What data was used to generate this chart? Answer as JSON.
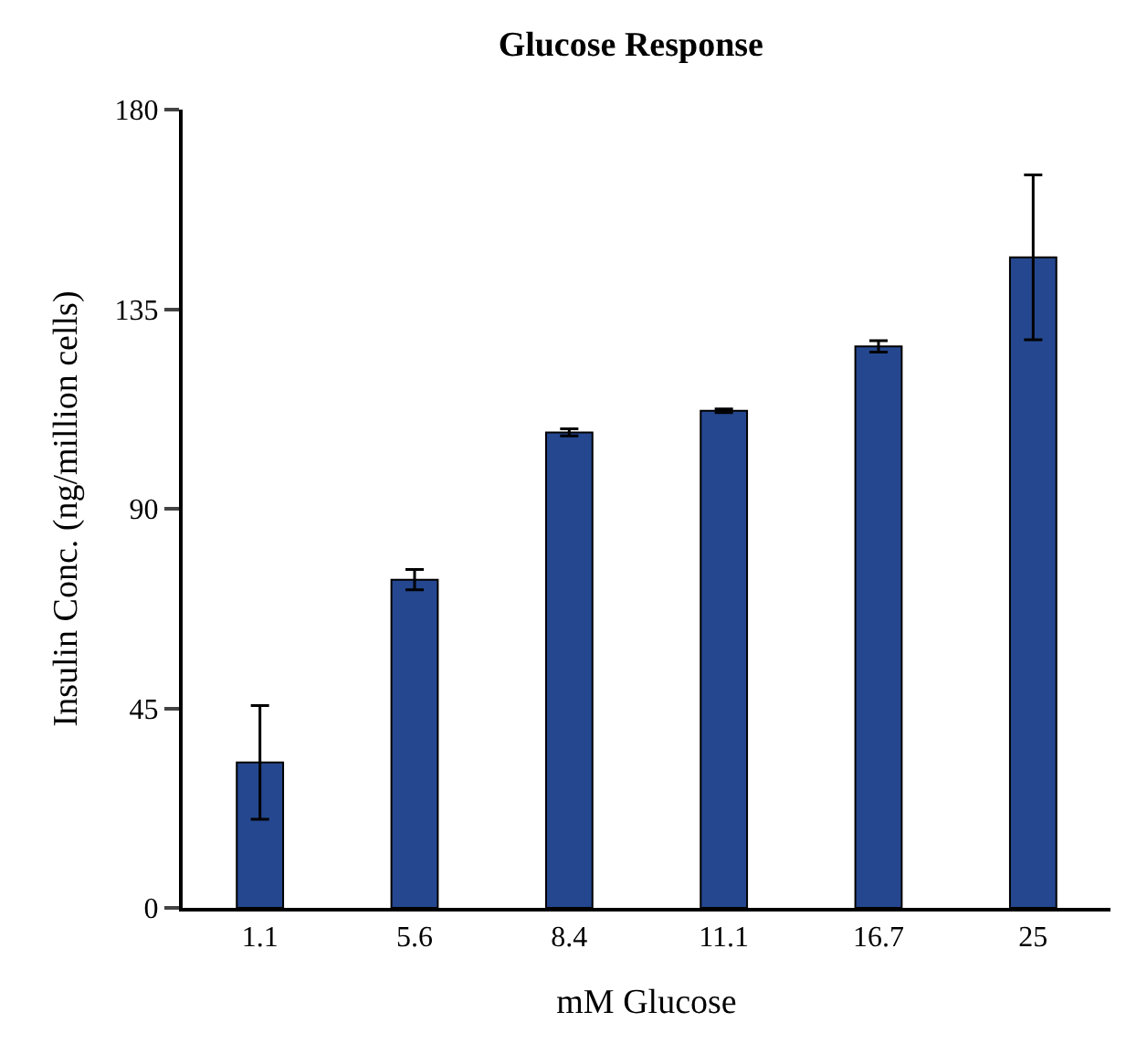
{
  "chart_data": {
    "type": "bar",
    "title": "Glucose Response",
    "xlabel": "mM Glucose",
    "ylabel": "Insulin Conc. (ng/million cells)",
    "categories": [
      "1.1",
      "5.6",
      "8.4",
      "11.1",
      "16.7",
      "25"
    ],
    "values": [
      32.8,
      74.0,
      107.2,
      112.1,
      126.6,
      146.7
    ],
    "errors": [
      12.8,
      2.3,
      0.8,
      0.4,
      1.3,
      18.6
    ],
    "color": "#25478f",
    "ylim": [
      0,
      180
    ],
    "yticks": [
      0,
      45,
      90,
      135,
      180
    ]
  }
}
